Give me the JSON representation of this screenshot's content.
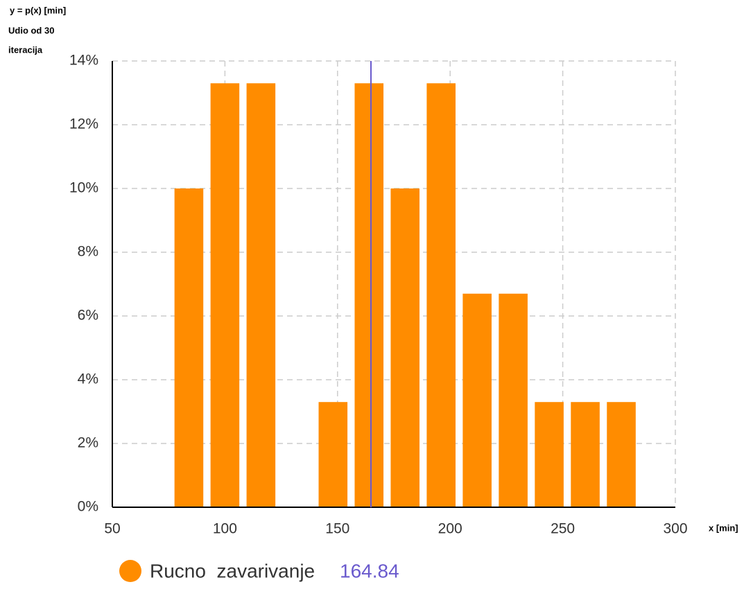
{
  "chart_data": {
    "type": "histogram",
    "ylabel": [
      "y = p(x) [min]",
      "Udio od 30",
      "iteracija"
    ],
    "xlabel": "x [min]",
    "bins": [
      76,
      92,
      108,
      124,
      140,
      156,
      172,
      188,
      204,
      220,
      236,
      252,
      268,
      284
    ],
    "series": [
      {
        "name": "Rucno  zavarivanje",
        "color": "#ff8c00",
        "values": [
          10,
          13.3,
          13.3,
          0,
          3.3,
          13.3,
          10,
          13.3,
          6.7,
          6.7,
          3.3,
          3.3,
          3.3
        ]
      }
    ],
    "mean": 164.84,
    "mean_color": "#6a5acd",
    "xlim": [
      50,
      300
    ],
    "xticks": [
      50,
      100,
      150,
      200,
      250,
      300
    ],
    "ylim": [
      0,
      14
    ],
    "yticks": [
      {
        "value": 0,
        "label": "0%"
      },
      {
        "value": 2,
        "label": "2%"
      },
      {
        "value": 4,
        "label": "4%"
      },
      {
        "value": 6,
        "label": "6%"
      },
      {
        "value": 8,
        "label": "8%"
      },
      {
        "value": 10,
        "label": "10%"
      },
      {
        "value": 12,
        "label": "12%"
      },
      {
        "value": 14,
        "label": "14%"
      }
    ],
    "grid": true
  }
}
